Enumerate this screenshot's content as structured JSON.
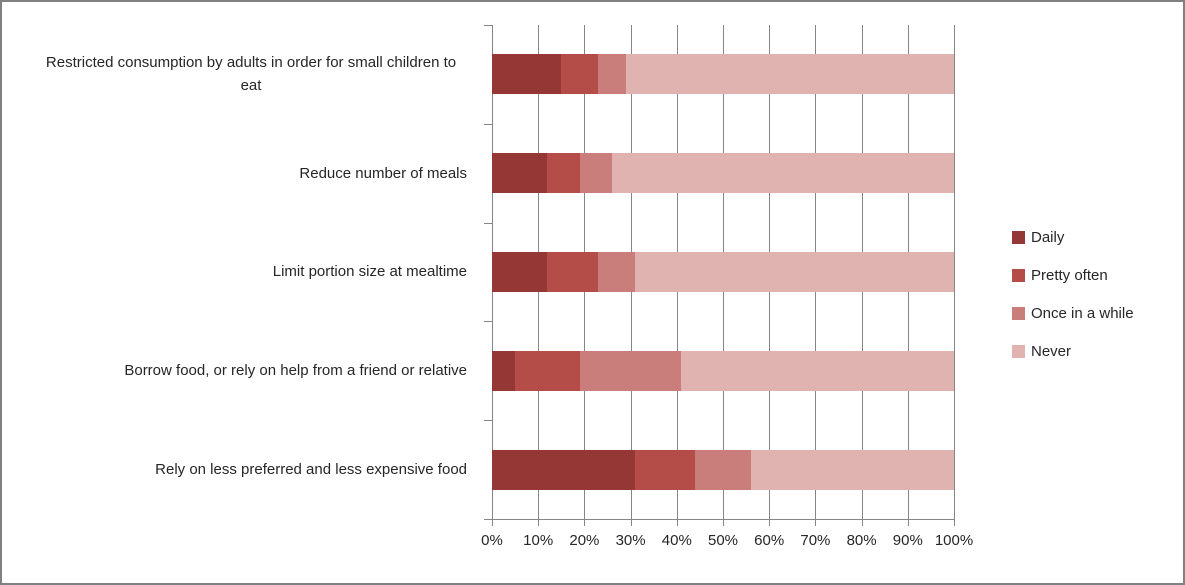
{
  "chart_data": {
    "type": "bar",
    "orientation": "horizontal-stacked",
    "title": "",
    "xlabel": "",
    "ylabel": "",
    "xlim": [
      0,
      100
    ],
    "grid": true,
    "legend_position": "right",
    "x_ticks": [
      "0%",
      "10%",
      "20%",
      "30%",
      "40%",
      "50%",
      "60%",
      "70%",
      "80%",
      "90%",
      "100%"
    ],
    "categories": [
      "Restricted consumption by adults in order for small children to eat",
      "Reduce number of meals",
      "Limit portion size at mealtime",
      "Borrow food, or rely on help from a friend or relative",
      "Rely on less preferred and less expensive food"
    ],
    "series": [
      {
        "name": "Daily",
        "color": "#943735",
        "values": [
          15,
          12,
          12,
          5,
          31
        ]
      },
      {
        "name": "Pretty often",
        "color": "#B44C48",
        "values": [
          8,
          7,
          11,
          14,
          13
        ]
      },
      {
        "name": "Once in a while",
        "color": "#C97E7C",
        "values": [
          6,
          7,
          8,
          22,
          12
        ]
      },
      {
        "name": "Never",
        "color": "#E0B2B0",
        "values": [
          71,
          74,
          69,
          59,
          44
        ]
      }
    ]
  },
  "colors": {
    "gridline": "#868686",
    "border": "#808080",
    "text": "#262626"
  }
}
